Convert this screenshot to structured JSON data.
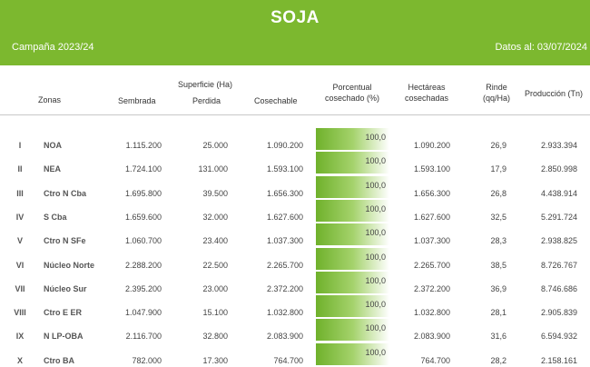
{
  "header": {
    "title": "SOJA",
    "campaign": "Campaña 2023/24",
    "date": "Datos al: 03/07/2024"
  },
  "columns": {
    "zonas": "Zonas",
    "superficie": "Superficie (Ha)",
    "sembrada": "Sembrada",
    "perdida": "Perdida",
    "cosechable": "Cosechable",
    "porcentual_l1": "Porcentual",
    "porcentual_l2": "cosechado (%)",
    "hectareas_l1": "Hectáreas",
    "hectareas_l2": "cosechadas",
    "rinde_l1": "Rinde",
    "rinde_l2": "(qq/Ha)",
    "produccion": "Producción (Tn)"
  },
  "rows": [
    {
      "num": "I",
      "zona": "NOA",
      "sembrada": "1.115.200",
      "perdida": "25.000",
      "cosechable": "1.090.200",
      "porcentual": "100,0",
      "porcentual_value": 100,
      "hectareas": "1.090.200",
      "rinde": "26,9",
      "produccion": "2.933.394"
    },
    {
      "num": "II",
      "zona": "NEA",
      "sembrada": "1.724.100",
      "perdida": "131.000",
      "cosechable": "1.593.100",
      "porcentual": "100,0",
      "porcentual_value": 100,
      "hectareas": "1.593.100",
      "rinde": "17,9",
      "produccion": "2.850.998"
    },
    {
      "num": "III",
      "zona": "Ctro N Cba",
      "sembrada": "1.695.800",
      "perdida": "39.500",
      "cosechable": "1.656.300",
      "porcentual": "100,0",
      "porcentual_value": 100,
      "hectareas": "1.656.300",
      "rinde": "26,8",
      "produccion": "4.438.914"
    },
    {
      "num": "IV",
      "zona": "S Cba",
      "sembrada": "1.659.600",
      "perdida": "32.000",
      "cosechable": "1.627.600",
      "porcentual": "100,0",
      "porcentual_value": 100,
      "hectareas": "1.627.600",
      "rinde": "32,5",
      "produccion": "5.291.724"
    },
    {
      "num": "V",
      "zona": "Ctro N SFe",
      "sembrada": "1.060.700",
      "perdida": "23.400",
      "cosechable": "1.037.300",
      "porcentual": "100,0",
      "porcentual_value": 100,
      "hectareas": "1.037.300",
      "rinde": "28,3",
      "produccion": "2.938.825"
    },
    {
      "num": "VI",
      "zona": "Núcleo Norte",
      "sembrada": "2.288.200",
      "perdida": "22.500",
      "cosechable": "2.265.700",
      "porcentual": "100,0",
      "porcentual_value": 100,
      "hectareas": "2.265.700",
      "rinde": "38,5",
      "produccion": "8.726.767"
    },
    {
      "num": "VII",
      "zona": "Núcleo Sur",
      "sembrada": "2.395.200",
      "perdida": "23.000",
      "cosechable": "2.372.200",
      "porcentual": "100,0",
      "porcentual_value": 100,
      "hectareas": "2.372.200",
      "rinde": "36,9",
      "produccion": "8.746.686"
    },
    {
      "num": "VIII",
      "zona": "Ctro E ER",
      "sembrada": "1.047.900",
      "perdida": "15.100",
      "cosechable": "1.032.800",
      "porcentual": "100,0",
      "porcentual_value": 100,
      "hectareas": "1.032.800",
      "rinde": "28,1",
      "produccion": "2.905.839"
    },
    {
      "num": "IX",
      "zona": "N LP-OBA",
      "sembrada": "2.116.700",
      "perdida": "32.800",
      "cosechable": "2.083.900",
      "porcentual": "100,0",
      "porcentual_value": 100,
      "hectareas": "2.083.900",
      "rinde": "31,6",
      "produccion": "6.594.932"
    },
    {
      "num": "X",
      "zona": "Ctro BA",
      "sembrada": "782.000",
      "perdida": "17.300",
      "cosechable": "764.700",
      "porcentual": "100,0",
      "porcentual_value": 100,
      "hectareas": "764.700",
      "rinde": "28,2",
      "produccion": "2.158.161"
    }
  ]
}
